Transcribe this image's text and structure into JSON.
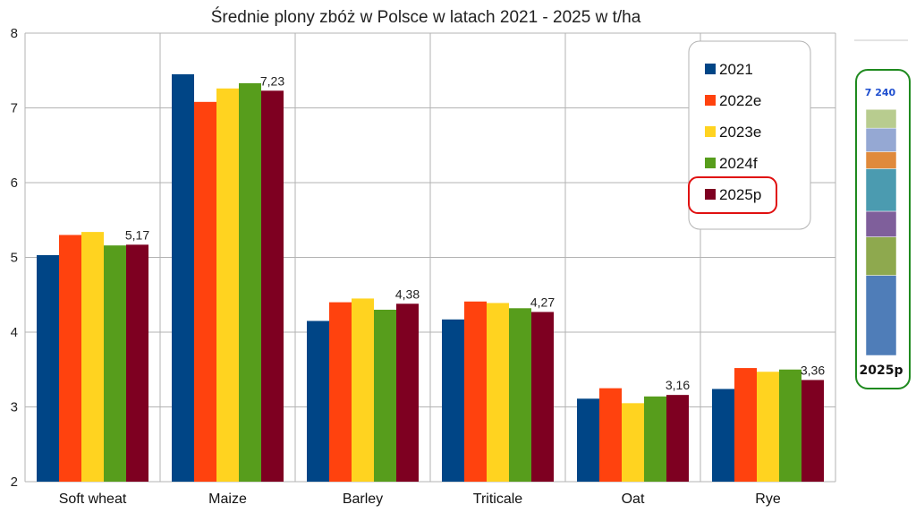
{
  "chart_data": {
    "type": "bar",
    "title": "Średnie plony zbóż w Polsce w latach 2021 - 2025 w t/ha",
    "xlabel": "",
    "ylabel": "",
    "ylim": [
      2,
      8
    ],
    "yticks": [
      "2",
      "3",
      "4",
      "5",
      "6",
      "7",
      "8"
    ],
    "grid": true,
    "legend_position": "right",
    "categories": [
      "Soft wheat",
      "Maize",
      "Barley",
      "Triticale",
      "Oat",
      "Rye"
    ],
    "series": [
      {
        "name": "2021",
        "color": "#004586",
        "values": [
          5.03,
          7.45,
          4.15,
          4.17,
          3.11,
          3.24
        ]
      },
      {
        "name": "2022e",
        "color": "#ff420e",
        "values": [
          5.3,
          7.08,
          4.4,
          4.41,
          3.25,
          3.52
        ]
      },
      {
        "name": "2023e",
        "color": "#ffd320",
        "values": [
          5.34,
          7.26,
          4.45,
          4.39,
          3.05,
          3.47
        ]
      },
      {
        "name": "2024f",
        "color": "#579d1c",
        "values": [
          5.16,
          7.33,
          4.3,
          4.32,
          3.14,
          3.5
        ]
      },
      {
        "name": "2025p",
        "color": "#7e0021",
        "values": [
          5.17,
          7.23,
          4.38,
          4.27,
          3.16,
          3.36
        ]
      }
    ],
    "data_labels": {
      "series": "2025p",
      "labels": [
        "5,17",
        "7,23",
        "4,38",
        "4,27",
        "3,16",
        "3,36"
      ]
    },
    "legend_highlight": {
      "series": "2025p",
      "color": "#e01010"
    }
  },
  "side_panel": {
    "top_value": "7 240",
    "label": "2025p",
    "border_color": "#1f8a1f",
    "segments": [
      {
        "color": "#4f7db8",
        "share": 0.316
      },
      {
        "color": "#8ea94e",
        "share": 0.152
      },
      {
        "color": "#7f5f9b",
        "share": 0.101
      },
      {
        "color": "#4b9bb0",
        "share": 0.168
      },
      {
        "color": "#e08a3c",
        "share": 0.067
      },
      {
        "color": "#95a8d3",
        "share": 0.093
      },
      {
        "color": "#b8cc8f",
        "share": 0.074
      }
    ]
  }
}
